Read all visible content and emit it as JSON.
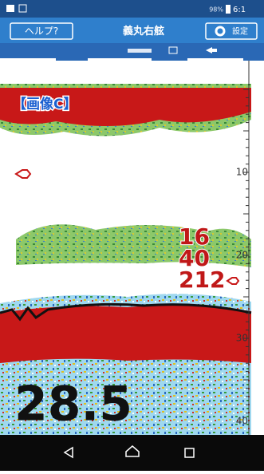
{
  "status_bar": {
    "battery": "98%",
    "time": "6:1"
  },
  "header": {
    "help_button": "ヘルプ?",
    "title": "義丸右舷",
    "settings_button": "設定"
  },
  "sonar": {
    "image_label": "【画像C】",
    "depth_scale": [
      10,
      20,
      30,
      40
    ],
    "readings": [
      "16",
      "40",
      "212"
    ],
    "depth": "28.5"
  }
}
